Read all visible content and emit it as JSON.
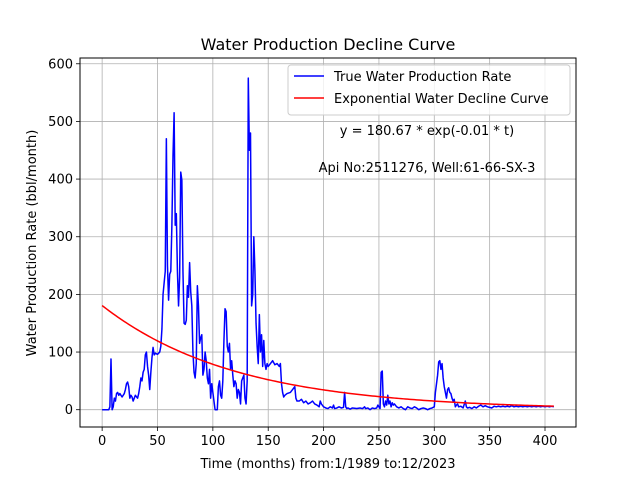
{
  "chart_data": {
    "type": "line",
    "title": "Water Production Decline Curve",
    "xlabel": "Time (months) from:1/1989 to:12/2023",
    "ylabel": "Water Production Rate (bbl/month)",
    "xlim": [
      -20,
      428
    ],
    "ylim": [
      -30,
      610
    ],
    "xticks": [
      0,
      50,
      100,
      150,
      200,
      250,
      300,
      350,
      400
    ],
    "yticks": [
      0,
      100,
      200,
      300,
      400,
      500,
      600
    ],
    "grid": true,
    "legend_position": "top-right",
    "annotations": [
      "y = 180.67 * exp(-0.01 * t)",
      "Api No:2511276, Well:61-66-SX-3"
    ],
    "series": [
      {
        "name": "True Water Production Rate",
        "color": "#0000ff",
        "points": [
          [
            0,
            0
          ],
          [
            6,
            0
          ],
          [
            7,
            5
          ],
          [
            8,
            88
          ],
          [
            9,
            0
          ],
          [
            10,
            5
          ],
          [
            11,
            20
          ],
          [
            12,
            15
          ],
          [
            13,
            28
          ],
          [
            14,
            30
          ],
          [
            15,
            25
          ],
          [
            16,
            28
          ],
          [
            18,
            22
          ],
          [
            20,
            28
          ],
          [
            21,
            35
          ],
          [
            22,
            45
          ],
          [
            23,
            48
          ],
          [
            24,
            40
          ],
          [
            25,
            20
          ],
          [
            26,
            25
          ],
          [
            27,
            22
          ],
          [
            28,
            15
          ],
          [
            30,
            25
          ],
          [
            32,
            20
          ],
          [
            33,
            28
          ],
          [
            34,
            40
          ],
          [
            35,
            55
          ],
          [
            36,
            50
          ],
          [
            37,
            65
          ],
          [
            38,
            70
          ],
          [
            39,
            95
          ],
          [
            40,
            100
          ],
          [
            41,
            75
          ],
          [
            42,
            60
          ],
          [
            43,
            35
          ],
          [
            44,
            65
          ],
          [
            45,
            90
          ],
          [
            46,
            108
          ],
          [
            47,
            95
          ],
          [
            48,
            98
          ],
          [
            50,
            96
          ],
          [
            52,
            100
          ],
          [
            53,
            110
          ],
          [
            54,
            140
          ],
          [
            55,
            200
          ],
          [
            56,
            220
          ],
          [
            57,
            240
          ],
          [
            58,
            470
          ],
          [
            59,
            250
          ],
          [
            60,
            190
          ],
          [
            61,
            235
          ],
          [
            62,
            240
          ],
          [
            63,
            320
          ],
          [
            64,
            440
          ],
          [
            65,
            515
          ],
          [
            66,
            320
          ],
          [
            67,
            340
          ],
          [
            68,
            240
          ],
          [
            69,
            180
          ],
          [
            70,
            230
          ],
          [
            71,
            412
          ],
          [
            72,
            398
          ],
          [
            73,
            240
          ],
          [
            74,
            150
          ],
          [
            75,
            148
          ],
          [
            76,
            155
          ],
          [
            77,
            215
          ],
          [
            78,
            195
          ],
          [
            79,
            255
          ],
          [
            80,
            205
          ],
          [
            81,
            180
          ],
          [
            82,
            100
          ],
          [
            83,
            65
          ],
          [
            84,
            55
          ],
          [
            85,
            80
          ],
          [
            86,
            215
          ],
          [
            87,
            180
          ],
          [
            88,
            115
          ],
          [
            89,
            125
          ],
          [
            90,
            130
          ],
          [
            91,
            60
          ],
          [
            92,
            70
          ],
          [
            93,
            100
          ],
          [
            94,
            85
          ],
          [
            95,
            55
          ],
          [
            96,
            45
          ],
          [
            97,
            70
          ],
          [
            98,
            20
          ],
          [
            99,
            45
          ],
          [
            100,
            30
          ],
          [
            101,
            15
          ],
          [
            102,
            0
          ],
          [
            104,
            0
          ],
          [
            105,
            40
          ],
          [
            106,
            50
          ],
          [
            107,
            25
          ],
          [
            108,
            20
          ],
          [
            109,
            50
          ],
          [
            110,
            120
          ],
          [
            111,
            175
          ],
          [
            112,
            170
          ],
          [
            113,
            110
          ],
          [
            114,
            100
          ],
          [
            115,
            115
          ],
          [
            116,
            70
          ],
          [
            117,
            85
          ],
          [
            118,
            60
          ],
          [
            119,
            40
          ],
          [
            120,
            50
          ],
          [
            121,
            45
          ],
          [
            122,
            20
          ],
          [
            123,
            35
          ],
          [
            124,
            30
          ],
          [
            125,
            10
          ],
          [
            126,
            50
          ],
          [
            127,
            55
          ],
          [
            128,
            60
          ],
          [
            129,
            20
          ],
          [
            130,
            10
          ],
          [
            131,
            50
          ],
          [
            132,
            575
          ],
          [
            133,
            450
          ],
          [
            134,
            480
          ],
          [
            135,
            180
          ],
          [
            136,
            200
          ],
          [
            137,
            300
          ],
          [
            138,
            240
          ],
          [
            139,
            150
          ],
          [
            140,
            110
          ],
          [
            141,
            80
          ],
          [
            142,
            165
          ],
          [
            143,
            100
          ],
          [
            144,
            130
          ],
          [
            145,
            75
          ],
          [
            146,
            120
          ],
          [
            147,
            80
          ],
          [
            148,
            70
          ],
          [
            149,
            80
          ],
          [
            150,
            75
          ],
          [
            152,
            80
          ],
          [
            154,
            85
          ],
          [
            156,
            78
          ],
          [
            158,
            80
          ],
          [
            160,
            75
          ],
          [
            161,
            80
          ],
          [
            162,
            45
          ],
          [
            163,
            30
          ],
          [
            164,
            22
          ],
          [
            165,
            25
          ],
          [
            167,
            28
          ],
          [
            170,
            30
          ],
          [
            172,
            35
          ],
          [
            174,
            40
          ],
          [
            175,
            20
          ],
          [
            176,
            15
          ],
          [
            178,
            15
          ],
          [
            180,
            18
          ],
          [
            182,
            12
          ],
          [
            184,
            15
          ],
          [
            186,
            10
          ],
          [
            188,
            12
          ],
          [
            190,
            15
          ],
          [
            192,
            10
          ],
          [
            194,
            8
          ],
          [
            196,
            5
          ],
          [
            197,
            15
          ],
          [
            198,
            10
          ],
          [
            200,
            5
          ],
          [
            202,
            3
          ],
          [
            204,
            2
          ],
          [
            206,
            5
          ],
          [
            208,
            3
          ],
          [
            209,
            8
          ],
          [
            210,
            2
          ],
          [
            212,
            3
          ],
          [
            214,
            5
          ],
          [
            216,
            3
          ],
          [
            218,
            4
          ],
          [
            219,
            30
          ],
          [
            220,
            5
          ],
          [
            221,
            2
          ],
          [
            222,
            3
          ],
          [
            224,
            1
          ],
          [
            226,
            3
          ],
          [
            230,
            2
          ],
          [
            233,
            3
          ],
          [
            235,
            2
          ],
          [
            236,
            3
          ],
          [
            237,
            5
          ],
          [
            238,
            2
          ],
          [
            240,
            3
          ],
          [
            242,
            0
          ],
          [
            244,
            3
          ],
          [
            246,
            2
          ],
          [
            248,
            3
          ],
          [
            249,
            8
          ],
          [
            250,
            5
          ],
          [
            251,
            2
          ],
          [
            252,
            65
          ],
          [
            253,
            67
          ],
          [
            254,
            10
          ],
          [
            255,
            5
          ],
          [
            256,
            15
          ],
          [
            257,
            8
          ],
          [
            258,
            25
          ],
          [
            259,
            10
          ],
          [
            260,
            15
          ],
          [
            261,
            5
          ],
          [
            262,
            12
          ],
          [
            263,
            8
          ],
          [
            264,
            10
          ],
          [
            266,
            5
          ],
          [
            268,
            3
          ],
          [
            270,
            5
          ],
          [
            272,
            2
          ],
          [
            274,
            0
          ],
          [
            276,
            5
          ],
          [
            278,
            3
          ],
          [
            280,
            2
          ],
          [
            282,
            5
          ],
          [
            284,
            3
          ],
          [
            286,
            0
          ],
          [
            288,
            2
          ],
          [
            290,
            3
          ],
          [
            292,
            2
          ],
          [
            294,
            0
          ],
          [
            296,
            2
          ],
          [
            298,
            3
          ],
          [
            300,
            5
          ],
          [
            301,
            30
          ],
          [
            302,
            45
          ],
          [
            303,
            60
          ],
          [
            304,
            83
          ],
          [
            305,
            85
          ],
          [
            306,
            70
          ],
          [
            307,
            80
          ],
          [
            308,
            55
          ],
          [
            309,
            40
          ],
          [
            310,
            30
          ],
          [
            311,
            20
          ],
          [
            312,
            35
          ],
          [
            313,
            38
          ],
          [
            314,
            30
          ],
          [
            315,
            28
          ],
          [
            316,
            20
          ],
          [
            317,
            15
          ],
          [
            318,
            18
          ],
          [
            319,
            5
          ],
          [
            320,
            8
          ],
          [
            321,
            10
          ],
          [
            322,
            5
          ],
          [
            324,
            6
          ],
          [
            326,
            3
          ],
          [
            328,
            15
          ],
          [
            329,
            5
          ],
          [
            330,
            3
          ],
          [
            332,
            4
          ],
          [
            334,
            2
          ],
          [
            336,
            5
          ],
          [
            338,
            3
          ],
          [
            340,
            6
          ],
          [
            342,
            8
          ],
          [
            344,
            5
          ],
          [
            346,
            7
          ],
          [
            348,
            5
          ],
          [
            350,
            4
          ],
          [
            352,
            3
          ],
          [
            354,
            6
          ],
          [
            356,
            5
          ],
          [
            358,
            6
          ],
          [
            360,
            5
          ],
          [
            362,
            6
          ],
          [
            364,
            5
          ],
          [
            366,
            6
          ],
          [
            368,
            5
          ],
          [
            370,
            7
          ],
          [
            372,
            5
          ],
          [
            374,
            6
          ],
          [
            376,
            5
          ],
          [
            378,
            6
          ],
          [
            380,
            5
          ],
          [
            382,
            6
          ],
          [
            384,
            5
          ],
          [
            386,
            6
          ],
          [
            388,
            5
          ],
          [
            390,
            6
          ],
          [
            392,
            5
          ],
          [
            394,
            6
          ],
          [
            396,
            5
          ],
          [
            398,
            6
          ],
          [
            400,
            5
          ],
          [
            402,
            6
          ],
          [
            404,
            5
          ],
          [
            406,
            6
          ],
          [
            408,
            5
          ]
        ]
      },
      {
        "name": "Exponential Water Decline Curve",
        "color": "#ff0000",
        "formula": {
          "a": 180.67,
          "b": 0.0083,
          "t_start": 0,
          "t_end": 408
        }
      }
    ]
  }
}
